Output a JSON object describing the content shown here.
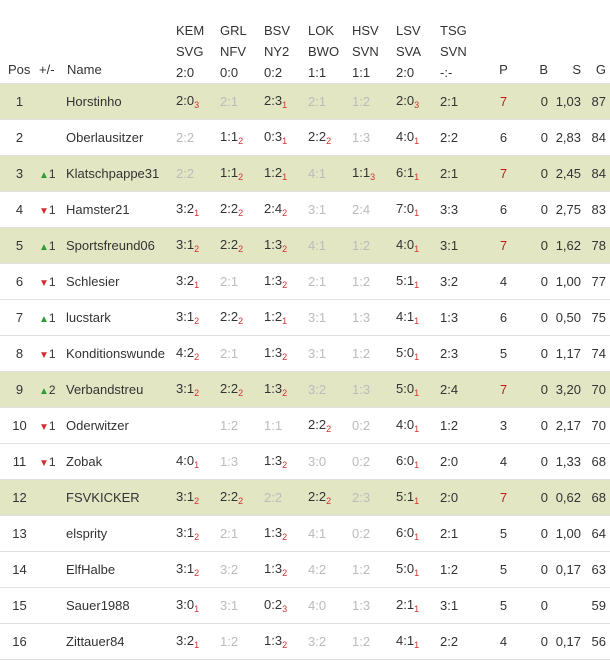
{
  "headers": {
    "pos": "Pos",
    "mv": "+/-",
    "name": "Name",
    "matches": [
      {
        "home": "KEM",
        "away": "SVG",
        "score": "2:0"
      },
      {
        "home": "GRL",
        "away": "NFV",
        "score": "0:0"
      },
      {
        "home": "BSV",
        "away": "NY2",
        "score": "0:2"
      },
      {
        "home": "LOK",
        "away": "BWO",
        "score": "1:1"
      },
      {
        "home": "HSV",
        "away": "SVN",
        "score": "1:1"
      },
      {
        "home": "LSV",
        "away": "SVA",
        "score": "2:0"
      },
      {
        "home": "TSG",
        "away": "SVN",
        "score": "-:-"
      }
    ],
    "p": "P",
    "b": "B",
    "s": "S",
    "g": "G"
  },
  "colors": {
    "highlight": "#e3e6c3",
    "red": "#c0201a",
    "up": "#2e9e2e",
    "down": "#d23030"
  },
  "rows": [
    {
      "pos": "1",
      "dir": "",
      "mv": "",
      "name": "Horstinho",
      "hl": true,
      "tips": [
        {
          "t": "2:0",
          "p": "3",
          "f": false
        },
        {
          "t": "2:1",
          "p": "",
          "f": true
        },
        {
          "t": "2:3",
          "p": "1",
          "f": false
        },
        {
          "t": "2:1",
          "p": "",
          "f": true
        },
        {
          "t": "1:2",
          "p": "",
          "f": true
        },
        {
          "t": "2:0",
          "p": "3",
          "f": false
        },
        {
          "t": "2:1",
          "p": "",
          "f": false
        }
      ],
      "p": "7",
      "pred": true,
      "b": "0",
      "s": "1,03",
      "g": "87"
    },
    {
      "pos": "2",
      "dir": "",
      "mv": "",
      "name": "Oberlausitzer",
      "hl": false,
      "tips": [
        {
          "t": "2:2",
          "p": "",
          "f": true
        },
        {
          "t": "1:1",
          "p": "2",
          "f": false
        },
        {
          "t": "0:3",
          "p": "1",
          "f": false
        },
        {
          "t": "2:2",
          "p": "2",
          "f": false
        },
        {
          "t": "1:3",
          "p": "",
          "f": true
        },
        {
          "t": "4:0",
          "p": "1",
          "f": false
        },
        {
          "t": "2:2",
          "p": "",
          "f": false
        }
      ],
      "p": "6",
      "pred": false,
      "b": "0",
      "s": "2,83",
      "g": "84"
    },
    {
      "pos": "3",
      "dir": "up",
      "mv": "1",
      "name": "Klatschpappe31",
      "hl": true,
      "tips": [
        {
          "t": "2:2",
          "p": "",
          "f": true
        },
        {
          "t": "1:1",
          "p": "2",
          "f": false
        },
        {
          "t": "1:2",
          "p": "1",
          "f": false
        },
        {
          "t": "4:1",
          "p": "",
          "f": true
        },
        {
          "t": "1:1",
          "p": "3",
          "f": false
        },
        {
          "t": "6:1",
          "p": "1",
          "f": false
        },
        {
          "t": "2:1",
          "p": "",
          "f": false
        }
      ],
      "p": "7",
      "pred": true,
      "b": "0",
      "s": "2,45",
      "g": "84"
    },
    {
      "pos": "4",
      "dir": "down",
      "mv": "1",
      "name": "Hamster21",
      "hl": false,
      "tips": [
        {
          "t": "3:2",
          "p": "1",
          "f": false
        },
        {
          "t": "2:2",
          "p": "2",
          "f": false
        },
        {
          "t": "2:4",
          "p": "2",
          "f": false
        },
        {
          "t": "3:1",
          "p": "",
          "f": true
        },
        {
          "t": "2:4",
          "p": "",
          "f": true
        },
        {
          "t": "7:0",
          "p": "1",
          "f": false
        },
        {
          "t": "3:3",
          "p": "",
          "f": false
        }
      ],
      "p": "6",
      "pred": false,
      "b": "0",
      "s": "2,75",
      "g": "83"
    },
    {
      "pos": "5",
      "dir": "up",
      "mv": "1",
      "name": "Sportsfreund06",
      "hl": true,
      "tips": [
        {
          "t": "3:1",
          "p": "2",
          "f": false
        },
        {
          "t": "2:2",
          "p": "2",
          "f": false
        },
        {
          "t": "1:3",
          "p": "2",
          "f": false
        },
        {
          "t": "4:1",
          "p": "",
          "f": true
        },
        {
          "t": "1:2",
          "p": "",
          "f": true
        },
        {
          "t": "4:0",
          "p": "1",
          "f": false
        },
        {
          "t": "3:1",
          "p": "",
          "f": false
        }
      ],
      "p": "7",
      "pred": true,
      "b": "0",
      "s": "1,62",
      "g": "78"
    },
    {
      "pos": "6",
      "dir": "down",
      "mv": "1",
      "name": "Schlesier",
      "hl": false,
      "tips": [
        {
          "t": "3:2",
          "p": "1",
          "f": false
        },
        {
          "t": "2:1",
          "p": "",
          "f": true
        },
        {
          "t": "1:3",
          "p": "2",
          "f": false
        },
        {
          "t": "2:1",
          "p": "",
          "f": true
        },
        {
          "t": "1:2",
          "p": "",
          "f": true
        },
        {
          "t": "5:1",
          "p": "1",
          "f": false
        },
        {
          "t": "3:2",
          "p": "",
          "f": false
        }
      ],
      "p": "4",
      "pred": false,
      "b": "0",
      "s": "1,00",
      "g": "77"
    },
    {
      "pos": "7",
      "dir": "up",
      "mv": "1",
      "name": "lucstark",
      "hl": false,
      "tips": [
        {
          "t": "3:1",
          "p": "2",
          "f": false
        },
        {
          "t": "2:2",
          "p": "2",
          "f": false
        },
        {
          "t": "1:2",
          "p": "1",
          "f": false
        },
        {
          "t": "3:1",
          "p": "",
          "f": true
        },
        {
          "t": "1:3",
          "p": "",
          "f": true
        },
        {
          "t": "4:1",
          "p": "1",
          "f": false
        },
        {
          "t": "1:3",
          "p": "",
          "f": false
        }
      ],
      "p": "6",
      "pred": false,
      "b": "0",
      "s": "0,50",
      "g": "75"
    },
    {
      "pos": "8",
      "dir": "down",
      "mv": "1",
      "name": "Konditionswunde",
      "hl": false,
      "tips": [
        {
          "t": "4:2",
          "p": "2",
          "f": false
        },
        {
          "t": "2:1",
          "p": "",
          "f": true
        },
        {
          "t": "1:3",
          "p": "2",
          "f": false
        },
        {
          "t": "3:1",
          "p": "",
          "f": true
        },
        {
          "t": "1:2",
          "p": "",
          "f": true
        },
        {
          "t": "5:0",
          "p": "1",
          "f": false
        },
        {
          "t": "2:3",
          "p": "",
          "f": false
        }
      ],
      "p": "5",
      "pred": false,
      "b": "0",
      "s": "1,17",
      "g": "74"
    },
    {
      "pos": "9",
      "dir": "up",
      "mv": "2",
      "name": "Verbandstreu",
      "hl": true,
      "tips": [
        {
          "t": "3:1",
          "p": "2",
          "f": false
        },
        {
          "t": "2:2",
          "p": "2",
          "f": false
        },
        {
          "t": "1:3",
          "p": "2",
          "f": false
        },
        {
          "t": "3:2",
          "p": "",
          "f": true
        },
        {
          "t": "1:3",
          "p": "",
          "f": true
        },
        {
          "t": "5:0",
          "p": "1",
          "f": false
        },
        {
          "t": "2:4",
          "p": "",
          "f": false
        }
      ],
      "p": "7",
      "pred": true,
      "b": "0",
      "s": "3,20",
      "g": "70"
    },
    {
      "pos": "10",
      "dir": "down",
      "mv": "1",
      "name": "Oderwitzer",
      "hl": false,
      "tips": [
        {
          "t": "",
          "p": "",
          "f": false
        },
        {
          "t": "1:2",
          "p": "",
          "f": true
        },
        {
          "t": "1:1",
          "p": "",
          "f": true
        },
        {
          "t": "2:2",
          "p": "2",
          "f": false
        },
        {
          "t": "0:2",
          "p": "",
          "f": true
        },
        {
          "t": "4:0",
          "p": "1",
          "f": false
        },
        {
          "t": "1:2",
          "p": "",
          "f": false
        }
      ],
      "p": "3",
      "pred": false,
      "b": "0",
      "s": "2,17",
      "g": "70"
    },
    {
      "pos": "11",
      "dir": "down",
      "mv": "1",
      "name": "Zobak",
      "hl": false,
      "tips": [
        {
          "t": "4:0",
          "p": "1",
          "f": false
        },
        {
          "t": "1:3",
          "p": "",
          "f": true
        },
        {
          "t": "1:3",
          "p": "2",
          "f": false
        },
        {
          "t": "3:0",
          "p": "",
          "f": true
        },
        {
          "t": "0:2",
          "p": "",
          "f": true
        },
        {
          "t": "6:0",
          "p": "1",
          "f": false
        },
        {
          "t": "2:0",
          "p": "",
          "f": false
        }
      ],
      "p": "4",
      "pred": false,
      "b": "0",
      "s": "1,33",
      "g": "68"
    },
    {
      "pos": "12",
      "dir": "",
      "mv": "",
      "name": "FSVKICKER",
      "hl": true,
      "tips": [
        {
          "t": "3:1",
          "p": "2",
          "f": false
        },
        {
          "t": "2:2",
          "p": "2",
          "f": false
        },
        {
          "t": "2:2",
          "p": "",
          "f": true
        },
        {
          "t": "2:2",
          "p": "2",
          "f": false
        },
        {
          "t": "2:3",
          "p": "",
          "f": true
        },
        {
          "t": "5:1",
          "p": "1",
          "f": false
        },
        {
          "t": "2:0",
          "p": "",
          "f": false
        }
      ],
      "p": "7",
      "pred": true,
      "b": "0",
      "s": "0,62",
      "g": "68"
    },
    {
      "pos": "13",
      "dir": "",
      "mv": "",
      "name": "elsprity",
      "hl": false,
      "tips": [
        {
          "t": "3:1",
          "p": "2",
          "f": false
        },
        {
          "t": "2:1",
          "p": "",
          "f": true
        },
        {
          "t": "1:3",
          "p": "2",
          "f": false
        },
        {
          "t": "4:1",
          "p": "",
          "f": true
        },
        {
          "t": "0:2",
          "p": "",
          "f": true
        },
        {
          "t": "6:0",
          "p": "1",
          "f": false
        },
        {
          "t": "2:1",
          "p": "",
          "f": false
        }
      ],
      "p": "5",
      "pred": false,
      "b": "0",
      "s": "1,00",
      "g": "64"
    },
    {
      "pos": "14",
      "dir": "",
      "mv": "",
      "name": "ElfHalbe",
      "hl": false,
      "tips": [
        {
          "t": "3:1",
          "p": "2",
          "f": false
        },
        {
          "t": "3:2",
          "p": "",
          "f": true
        },
        {
          "t": "1:3",
          "p": "2",
          "f": false
        },
        {
          "t": "4:2",
          "p": "",
          "f": true
        },
        {
          "t": "1:2",
          "p": "",
          "f": true
        },
        {
          "t": "5:0",
          "p": "1",
          "f": false
        },
        {
          "t": "1:2",
          "p": "",
          "f": false
        }
      ],
      "p": "5",
      "pred": false,
      "b": "0",
      "s": "0,17",
      "g": "63"
    },
    {
      "pos": "15",
      "dir": "",
      "mv": "",
      "name": "Sauer1988",
      "hl": false,
      "tips": [
        {
          "t": "3:0",
          "p": "1",
          "f": false
        },
        {
          "t": "3:1",
          "p": "",
          "f": true
        },
        {
          "t": "0:2",
          "p": "3",
          "f": false
        },
        {
          "t": "4:0",
          "p": "",
          "f": true
        },
        {
          "t": "1:3",
          "p": "",
          "f": true
        },
        {
          "t": "2:1",
          "p": "1",
          "f": false
        },
        {
          "t": "3:1",
          "p": "",
          "f": false
        }
      ],
      "p": "5",
      "pred": false,
      "b": "0",
      "s": "",
      "g": "59"
    },
    {
      "pos": "16",
      "dir": "",
      "mv": "",
      "name": "Zittauer84",
      "hl": false,
      "tips": [
        {
          "t": "3:2",
          "p": "1",
          "f": false
        },
        {
          "t": "1:2",
          "p": "",
          "f": true
        },
        {
          "t": "1:3",
          "p": "2",
          "f": false
        },
        {
          "t": "3:2",
          "p": "",
          "f": true
        },
        {
          "t": "1:2",
          "p": "",
          "f": true
        },
        {
          "t": "4:1",
          "p": "1",
          "f": false
        },
        {
          "t": "2:2",
          "p": "",
          "f": false
        }
      ],
      "p": "4",
      "pred": false,
      "b": "0",
      "s": "0,17",
      "g": "56"
    }
  ]
}
